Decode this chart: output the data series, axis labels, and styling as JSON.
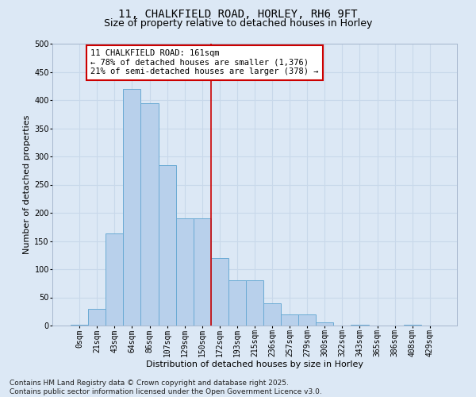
{
  "title_line1": "11, CHALKFIELD ROAD, HORLEY, RH6 9FT",
  "title_line2": "Size of property relative to detached houses in Horley",
  "xlabel": "Distribution of detached houses by size in Horley",
  "ylabel": "Number of detached properties",
  "bar_labels": [
    "0sqm",
    "21sqm",
    "43sqm",
    "64sqm",
    "86sqm",
    "107sqm",
    "129sqm",
    "150sqm",
    "172sqm",
    "193sqm",
    "215sqm",
    "236sqm",
    "257sqm",
    "279sqm",
    "300sqm",
    "322sqm",
    "343sqm",
    "365sqm",
    "386sqm",
    "408sqm",
    "429sqm"
  ],
  "bar_values": [
    2,
    30,
    163,
    420,
    395,
    285,
    190,
    190,
    120,
    80,
    80,
    40,
    20,
    20,
    5,
    0,
    2,
    0,
    0,
    1,
    0
  ],
  "bar_color": "#b8d0eb",
  "bar_edge_color": "#6aaad4",
  "vline_color": "#cc0000",
  "vline_x_index": 7.5,
  "annotation_title": "11 CHALKFIELD ROAD: 161sqm",
  "annotation_line1": "← 78% of detached houses are smaller (1,376)",
  "annotation_line2": "21% of semi-detached houses are larger (378) →",
  "annotation_box_color": "#ffffff",
  "annotation_box_edge": "#cc0000",
  "ylim": [
    0,
    500
  ],
  "yticks": [
    0,
    50,
    100,
    150,
    200,
    250,
    300,
    350,
    400,
    450,
    500
  ],
  "grid_color": "#c8d8ea",
  "bg_color": "#dce8f5",
  "footer": "Contains HM Land Registry data © Crown copyright and database right 2025.\nContains public sector information licensed under the Open Government Licence v3.0.",
  "title_fontsize": 10,
  "subtitle_fontsize": 9,
  "axis_label_fontsize": 8,
  "tick_fontsize": 7,
  "annotation_fontsize": 7.5,
  "footer_fontsize": 6.5
}
